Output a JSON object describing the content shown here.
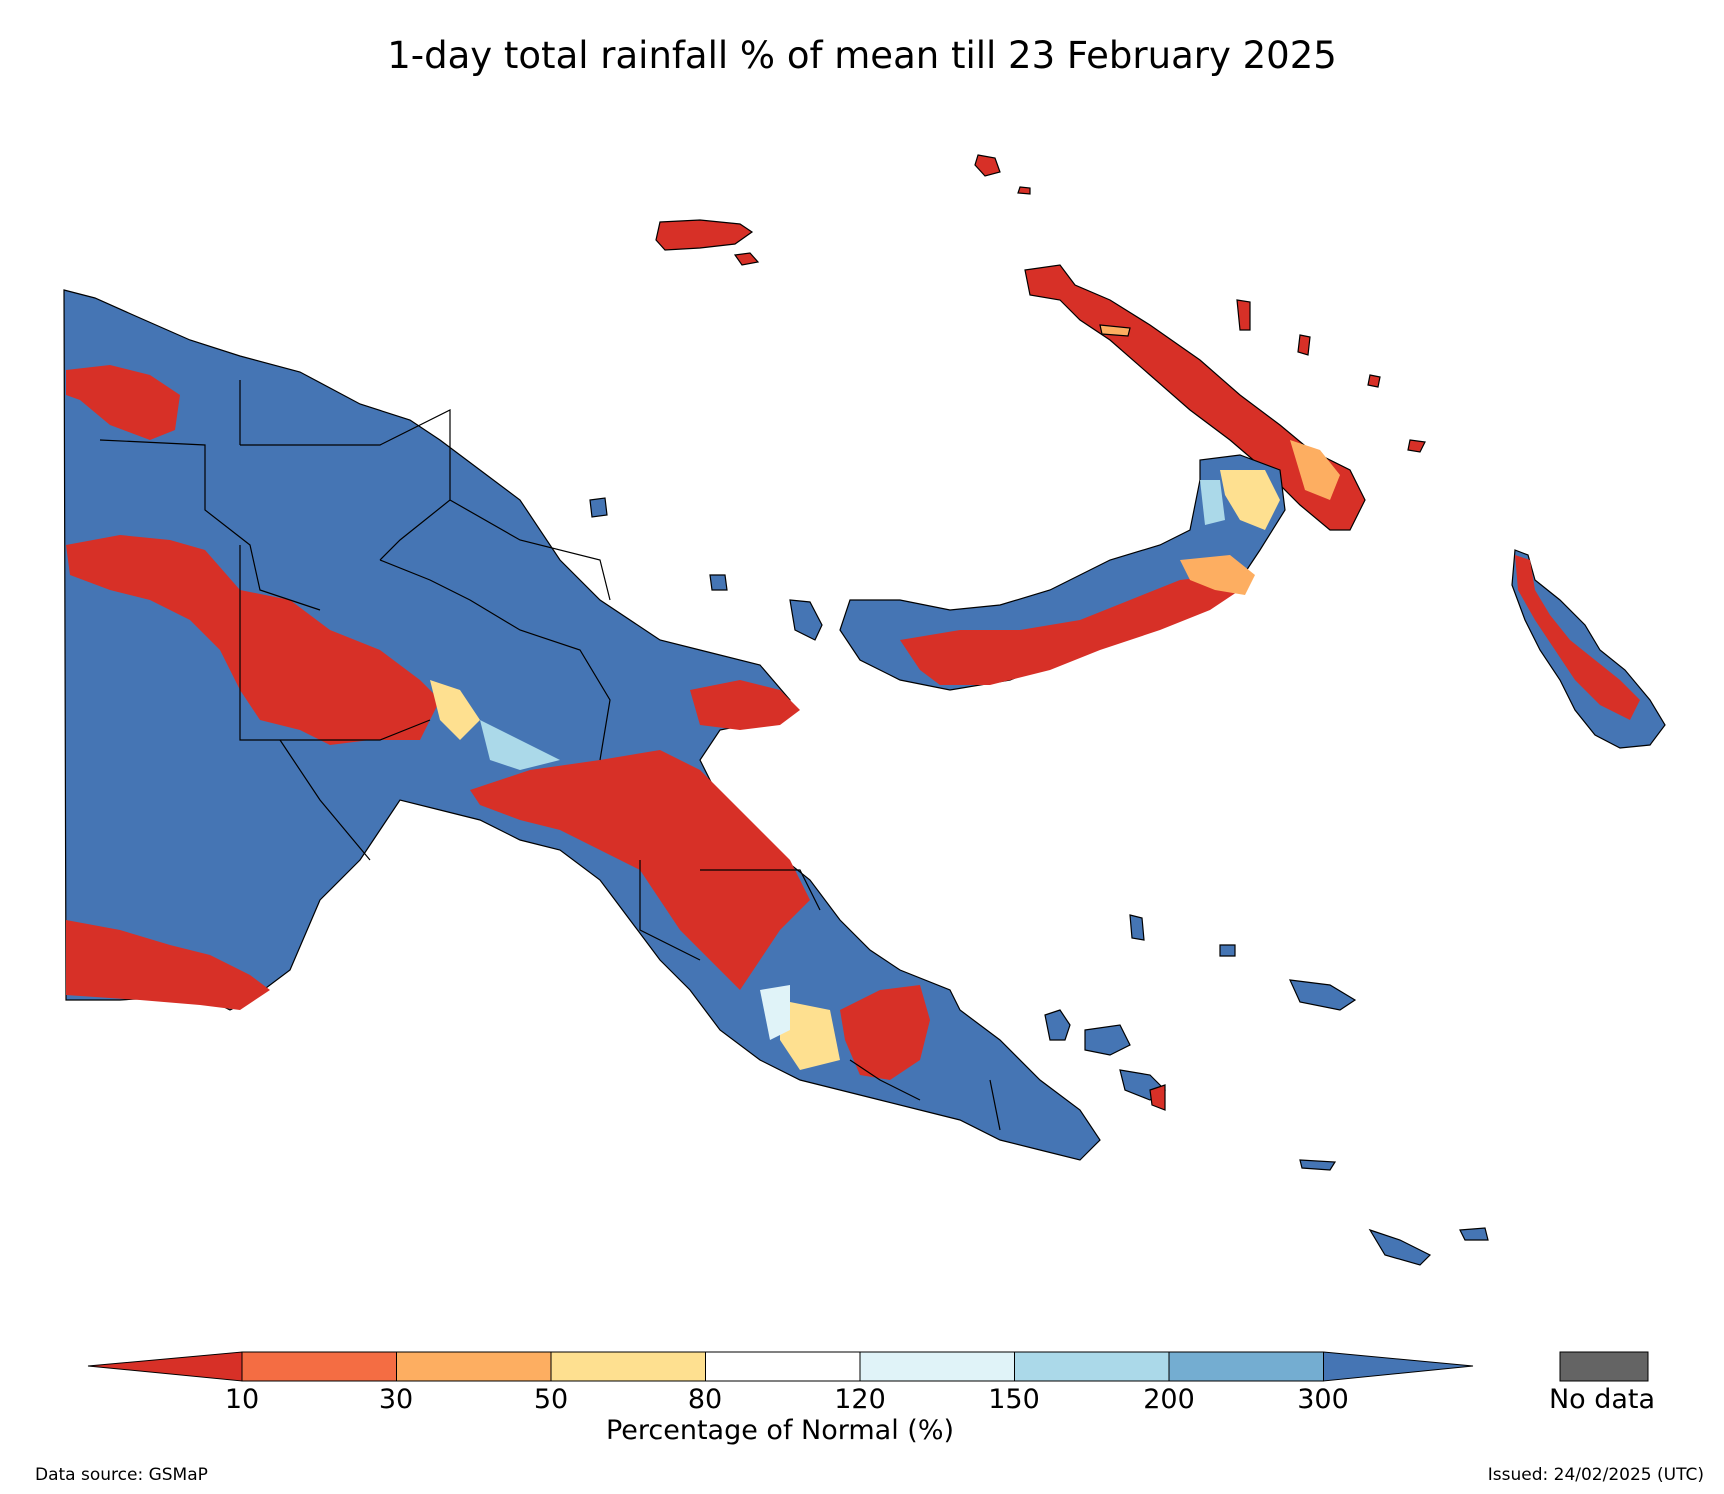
{
  "title": "1-day total rainfall % of mean till 23 February 2025",
  "colorbar": {
    "labels": [
      "10",
      "30",
      "50",
      "80",
      "120",
      "150",
      "200",
      "300"
    ],
    "colors": [
      "#d73027",
      "#f46d43",
      "#fdae61",
      "#fee090",
      "#ffffff",
      "#e0f3f8",
      "#abd9e9",
      "#74add1",
      "#4575b4"
    ],
    "title": "Percentage of Normal (%)",
    "nodata_label": "No data",
    "nodata_color": "#646464"
  },
  "footer": {
    "source": "Data source: GSMaP",
    "issued": "Issued: 24/02/2025 (UTC)"
  }
}
